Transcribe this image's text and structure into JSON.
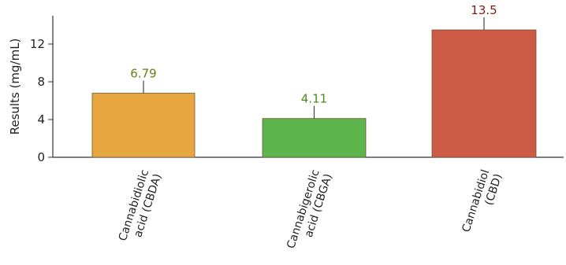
{
  "chart_data": {
    "type": "bar",
    "title": "",
    "xlabel": "",
    "ylabel": "Results (mg/mL)",
    "ylim": [
      0,
      15
    ],
    "yticks": [
      0,
      4,
      8,
      12
    ],
    "grid": false,
    "categories": [
      [
        "Cannabidiolic",
        "acid (CBDA)"
      ],
      [
        "Cannabigerolic",
        "acid (CBGA)"
      ],
      [
        "Cannabidiol",
        "(CBD)"
      ]
    ],
    "values": [
      6.79,
      4.11,
      13.5
    ],
    "data_labels": [
      "6.79",
      "4.11",
      "13.5"
    ],
    "bar_colors": [
      "#e8a640",
      "#5cb44a",
      "#cc5a45"
    ],
    "label_colors": [
      "#6b7d12",
      "#4e8a1c",
      "#7a1e12"
    ]
  }
}
